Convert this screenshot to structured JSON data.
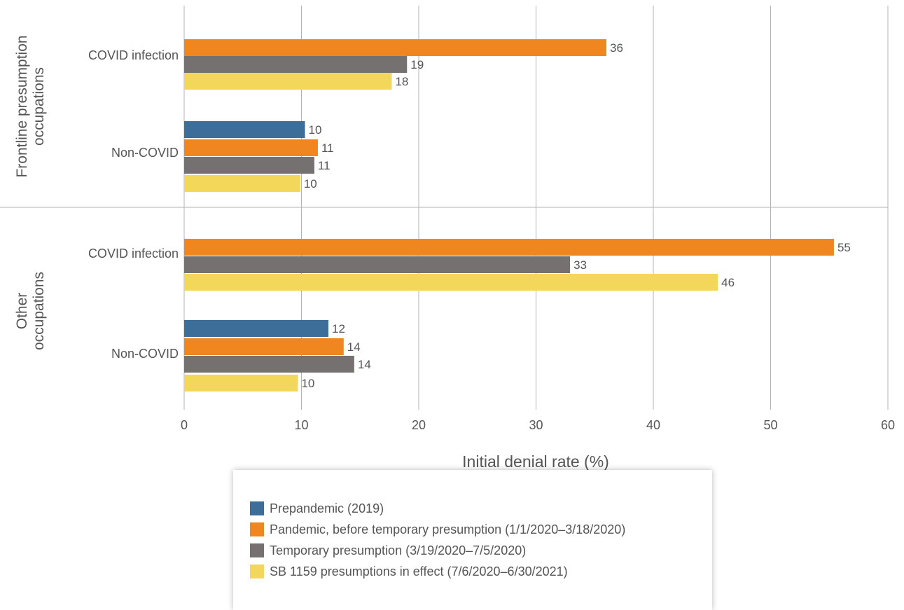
{
  "chart_data": {
    "type": "bar",
    "orientation": "horizontal",
    "xlabel": "Initial denial rate (%)",
    "xlim": [
      0,
      60
    ],
    "xticks": [
      "0",
      "10",
      "20",
      "30",
      "40",
      "50",
      "60"
    ],
    "grid": true,
    "legend_position": "bottom",
    "groups": [
      {
        "label": "Frontline presumption occupations",
        "categories": [
          {
            "label": "COVID infection",
            "bars": [
              {
                "series": "Pandemic, before temporary presumption (1/1/2020–3/18/2020)",
                "value": 36,
                "label": "36"
              },
              {
                "series": "Temporary presumption (3/19/2020–7/5/2020)",
                "value": 19,
                "label": "19"
              },
              {
                "series": "SB 1159 presumptions in effect (7/6/2020–6/30/2021)",
                "value": 17.7,
                "label": "18"
              }
            ]
          },
          {
            "label": "Non-COVID",
            "bars": [
              {
                "series": "Prepandemic (2019)",
                "value": 10.3,
                "label": "10"
              },
              {
                "series": "Pandemic, before temporary presumption (1/1/2020–3/18/2020)",
                "value": 11.4,
                "label": "11"
              },
              {
                "series": "Temporary presumption (3/19/2020–7/5/2020)",
                "value": 11.1,
                "label": "11"
              },
              {
                "series": "SB 1159 presumptions in effect (7/6/2020–6/30/2021)",
                "value": 9.9,
                "label": "10"
              }
            ]
          }
        ]
      },
      {
        "label": "Other occupations",
        "categories": [
          {
            "label": "COVID infection",
            "bars": [
              {
                "series": "Pandemic, before temporary presumption (1/1/2020–3/18/2020)",
                "value": 55.4,
                "label": "55"
              },
              {
                "series": "Temporary presumption (3/19/2020–7/5/2020)",
                "value": 32.9,
                "label": "33"
              },
              {
                "series": "SB 1159 presumptions in effect (7/6/2020–6/30/2021)",
                "value": 45.5,
                "label": "46"
              }
            ]
          },
          {
            "label": "Non-COVID",
            "bars": [
              {
                "series": "Prepandemic (2019)",
                "value": 12.3,
                "label": "12"
              },
              {
                "series": "Pandemic, before temporary presumption (1/1/2020–3/18/2020)",
                "value": 13.6,
                "label": "14"
              },
              {
                "series": "Temporary presumption (3/19/2020–7/5/2020)",
                "value": 14.5,
                "label": "14"
              },
              {
                "series": "SB 1159 presumptions in effect (7/6/2020–6/30/2021)",
                "value": 9.7,
                "label": "10"
              }
            ]
          }
        ]
      }
    ],
    "series": [
      {
        "name": "Prepandemic (2019)",
        "color": "#3d6e99"
      },
      {
        "name": "Pandemic, before temporary presumption (1/1/2020–3/18/2020)",
        "color": "#ef861f"
      },
      {
        "name": "Temporary presumption (3/19/2020–7/5/2020)",
        "color": "#767171"
      },
      {
        "name": "SB 1159 presumptions in effect (7/6/2020–6/30/2021)",
        "color": "#f2d75a"
      }
    ]
  }
}
